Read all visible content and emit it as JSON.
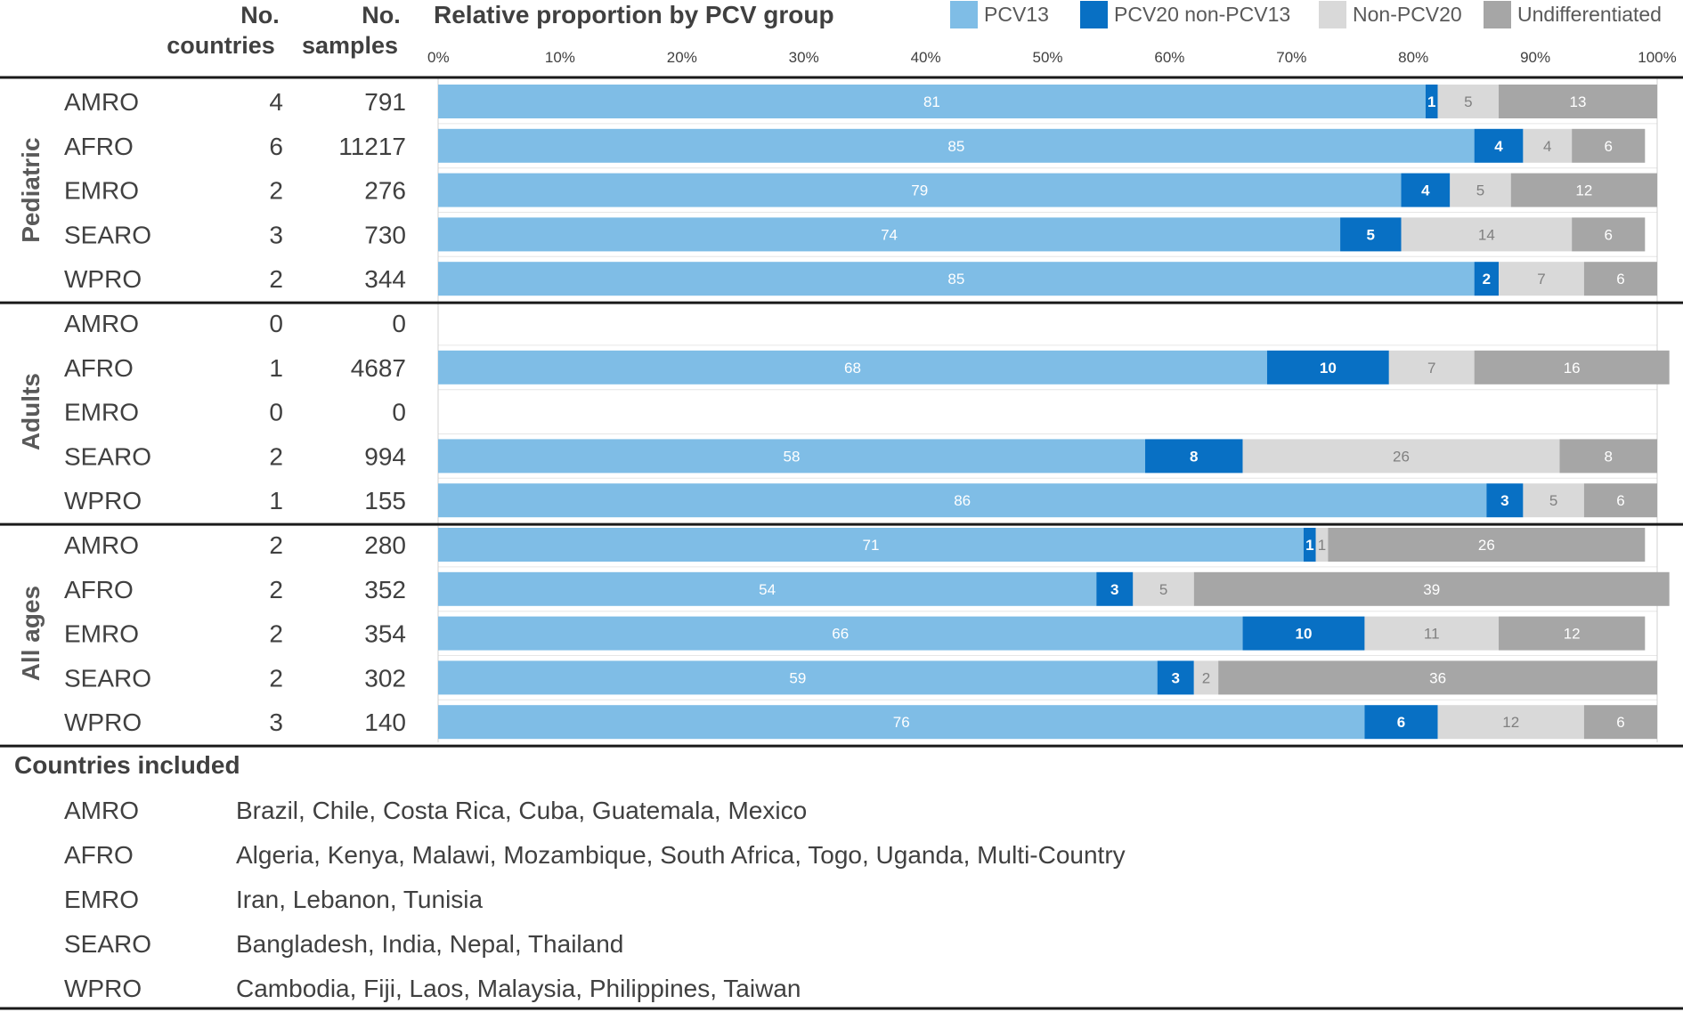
{
  "header": {
    "countries_label_1": "No.",
    "countries_label_2": "countries",
    "samples_label_1": "No.",
    "samples_label_2": "samples"
  },
  "colors": {
    "PCV13": "#7fbde6",
    "PCV20 non-PCV13": "#0870c4",
    "Non-PCV20": "#d9d9d9",
    "Undifferentiated": "#a6a6a6"
  },
  "chart_data": {
    "type": "bar",
    "orientation": "horizontal",
    "stacked": true,
    "title": "Relative proportion by PCV group",
    "xlim": [
      0,
      100
    ],
    "x_ticks": [
      "0%",
      "10%",
      "20%",
      "30%",
      "40%",
      "50%",
      "60%",
      "70%",
      "80%",
      "90%",
      "100%"
    ],
    "legend": [
      "PCV13",
      "PCV20 non-PCV13",
      "Non-PCV20",
      "Undifferentiated"
    ],
    "legend_position": "top-right",
    "groups": [
      {
        "name": "Pediatric",
        "rows": [
          {
            "region": "AMRO",
            "countries": "4",
            "samples": "791",
            "values": [
              81,
              1,
              5,
              13
            ]
          },
          {
            "region": "AFRO",
            "countries": "6",
            "samples": "11217",
            "values": [
              85,
              4,
              4,
              6
            ]
          },
          {
            "region": "EMRO",
            "countries": "2",
            "samples": "276",
            "values": [
              79,
              4,
              5,
              12
            ]
          },
          {
            "region": "SEARO",
            "countries": "3",
            "samples": "730",
            "values": [
              74,
              5,
              14,
              6
            ]
          },
          {
            "region": "WPRO",
            "countries": "2",
            "samples": "344",
            "values": [
              85,
              2,
              7,
              6
            ]
          }
        ]
      },
      {
        "name": "Adults",
        "rows": [
          {
            "region": "AMRO",
            "countries": "0",
            "samples": "0",
            "values": null
          },
          {
            "region": "AFRO",
            "countries": "1",
            "samples": "4687",
            "values": [
              68,
              10,
              7,
              16
            ]
          },
          {
            "region": "EMRO",
            "countries": "0",
            "samples": "0",
            "values": null
          },
          {
            "region": "SEARO",
            "countries": "2",
            "samples": "994",
            "values": [
              58,
              8,
              26,
              8
            ]
          },
          {
            "region": "WPRO",
            "countries": "1",
            "samples": "155",
            "values": [
              86,
              3,
              5,
              6
            ]
          }
        ]
      },
      {
        "name": "All ages",
        "rows": [
          {
            "region": "AMRO",
            "countries": "2",
            "samples": "280",
            "values": [
              71,
              1,
              1,
              26
            ]
          },
          {
            "region": "AFRO",
            "countries": "2",
            "samples": "352",
            "values": [
              54,
              3,
              5,
              39
            ]
          },
          {
            "region": "EMRO",
            "countries": "2",
            "samples": "354",
            "values": [
              66,
              10,
              11,
              12
            ]
          },
          {
            "region": "SEARO",
            "countries": "2",
            "samples": "302",
            "values": [
              59,
              3,
              2,
              36
            ]
          },
          {
            "region": "WPRO",
            "countries": "3",
            "samples": "140",
            "values": [
              76,
              6,
              12,
              6
            ]
          }
        ]
      }
    ]
  },
  "countries_included": {
    "title": "Countries included",
    "rows": [
      {
        "region": "AMRO",
        "list": "Brazil, Chile, Costa Rica, Cuba, Guatemala, Mexico"
      },
      {
        "region": "AFRO",
        "list": "Algeria, Kenya, Malawi, Mozambique, South Africa, Togo, Uganda, Multi-Country"
      },
      {
        "region": "EMRO",
        "list": "Iran, Lebanon, Tunisia"
      },
      {
        "region": "SEARO",
        "list": "Bangladesh, India, Nepal, Thailand"
      },
      {
        "region": "WPRO",
        "list": "Cambodia, Fiji, Laos, Malaysia, Philippines, Taiwan"
      }
    ]
  }
}
